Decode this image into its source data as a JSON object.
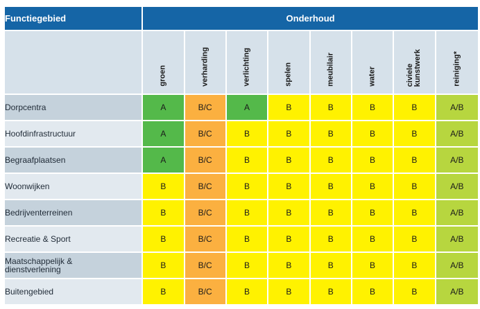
{
  "header": {
    "left": "Functiegebied",
    "right": "Onderhoud"
  },
  "columns": [
    "groen",
    "verharding",
    "verlichting",
    "spelen",
    "meubilair",
    "water",
    "civiele\nkunstwerk",
    "reiniging*"
  ],
  "rows": [
    {
      "label": "Dorpcentra",
      "values": [
        "A",
        "B/C",
        "A",
        "B",
        "B",
        "B",
        "B",
        "A/B"
      ]
    },
    {
      "label": "Hoofdinfrastructuur",
      "values": [
        "A",
        "B/C",
        "B",
        "B",
        "B",
        "B",
        "B",
        "A/B"
      ]
    },
    {
      "label": "Begraafplaatsen",
      "values": [
        "A",
        "B/C",
        "B",
        "B",
        "B",
        "B",
        "B",
        "A/B"
      ]
    },
    {
      "label": "Woonwijken",
      "values": [
        "B",
        "B/C",
        "B",
        "B",
        "B",
        "B",
        "B",
        "A/B"
      ]
    },
    {
      "label": "Bedrijventerreinen",
      "values": [
        "B",
        "B/C",
        "B",
        "B",
        "B",
        "B",
        "B",
        "A/B"
      ]
    },
    {
      "label": "Recreatie & Sport",
      "values": [
        "B",
        "B/C",
        "B",
        "B",
        "B",
        "B",
        "B",
        "A/B"
      ]
    },
    {
      "label": "Maatschappelijk &\ndienstverlening",
      "values": [
        "B",
        "B/C",
        "B",
        "B",
        "B",
        "B",
        "B",
        "A/B"
      ]
    },
    {
      "label": "Buitengebied",
      "values": [
        "B",
        "B/C",
        "B",
        "B",
        "B",
        "B",
        "B",
        "A/B"
      ]
    }
  ],
  "colors": {
    "A": "#54b94a",
    "B": "#fff200",
    "B/C": "#fbb040",
    "A/B": "#b7d63f",
    "header": "#1565a6"
  }
}
